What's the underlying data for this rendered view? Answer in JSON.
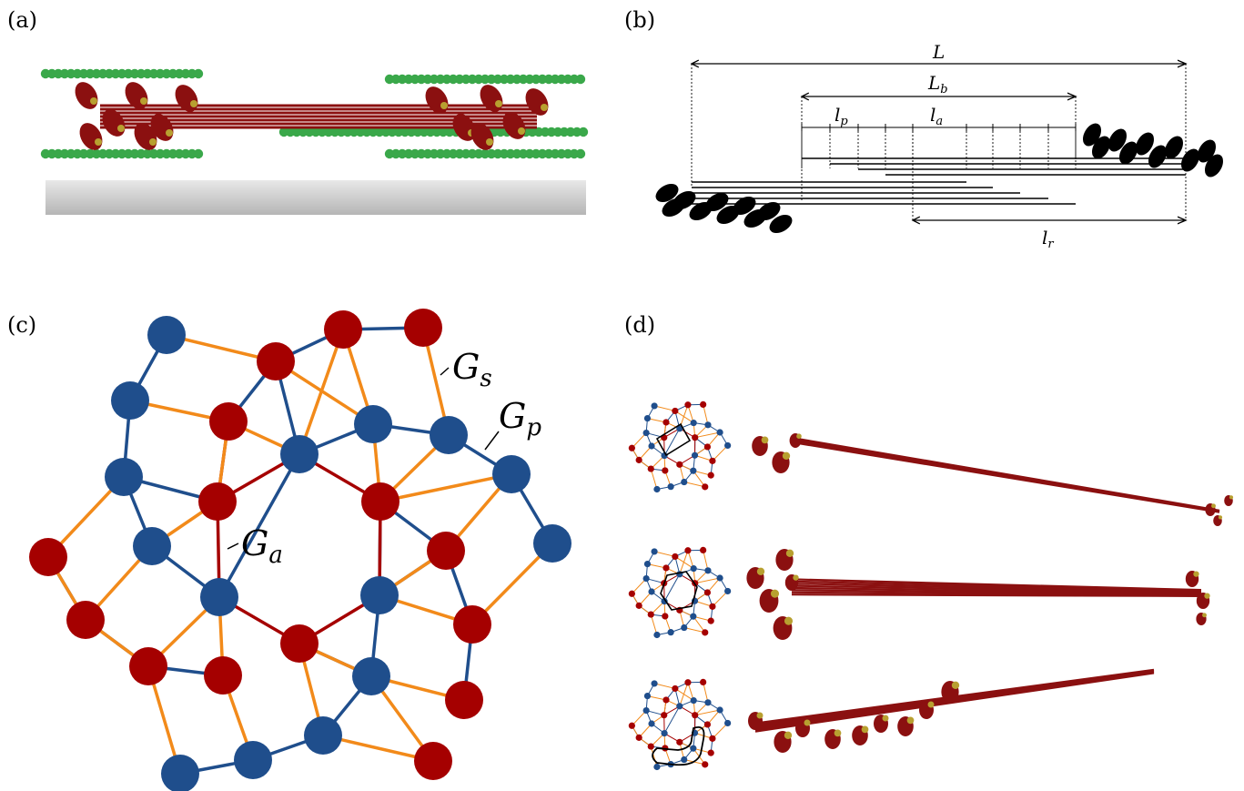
{
  "panels": {
    "a": "(a)",
    "b": "(b)",
    "c": "(c)",
    "d": "(d)"
  },
  "dimensions_b": {
    "L": "L",
    "Lb": "L",
    "Lb_sub": "b",
    "lp": "l",
    "lp_sub": "p",
    "la": "l",
    "la_sub": "a",
    "lr": "l",
    "lr_sub": "r"
  },
  "network_c": {
    "Gs": "G",
    "Gs_sub": "s",
    "Gp": "G",
    "Gp_sub": "p",
    "Ga": "G",
    "Ga_sub": "a"
  },
  "colors": {
    "red_node": "#a50000",
    "blue_node": "#1f4e8c",
    "orange_edge": "#f28a1a",
    "red_edge": "#a50000",
    "blue_edge": "#1f4e8c",
    "actin_green": "#3aa84a",
    "myosin_red": "#8b1010",
    "myosin_gold": "#b8a030",
    "floor_gray": "#bdbdbd"
  }
}
